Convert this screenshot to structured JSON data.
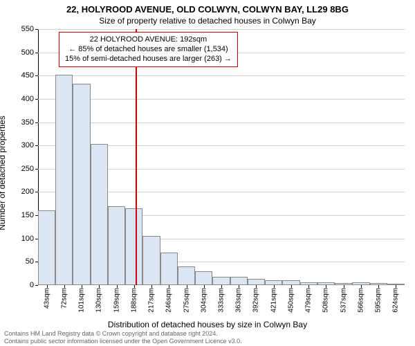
{
  "title": "22, HOLYROOD AVENUE, OLD COLWYN, COLWYN BAY, LL29 8BG",
  "subtitle": "Size of property relative to detached houses in Colwyn Bay",
  "axes": {
    "ylabel": "Number of detached properties",
    "xlabel": "Distribution of detached houses by size in Colwyn Bay",
    "ylim": [
      0,
      550
    ],
    "ytick_step": 50,
    "grid_color": "#d0d0d0",
    "axis_color": "#000000",
    "background_color": "#ffffff",
    "label_fontsize": 12,
    "tick_fontsize": 11
  },
  "chart": {
    "type": "histogram",
    "bar_fill": "#dce6f2",
    "bar_border": "#888888",
    "categories": [
      "43sqm",
      "72sqm",
      "101sqm",
      "130sqm",
      "159sqm",
      "188sqm",
      "217sqm",
      "246sqm",
      "275sqm",
      "304sqm",
      "333sqm",
      "363sqm",
      "392sqm",
      "421sqm",
      "450sqm",
      "479sqm",
      "508sqm",
      "537sqm",
      "566sqm",
      "595sqm",
      "624sqm"
    ],
    "values": [
      160,
      452,
      432,
      303,
      170,
      165,
      105,
      70,
      40,
      30,
      18,
      18,
      14,
      10,
      10,
      6,
      6,
      4,
      6,
      4,
      2
    ],
    "bar_gap_ratio": 0.0
  },
  "marker": {
    "value_sqm": 192,
    "line_color": "#cc0000",
    "box_border": "#cc0000",
    "box_background": "#ffffff",
    "lines": [
      "22 HOLYROOD AVENUE: 192sqm",
      "← 85% of detached houses are smaller (1,534)",
      "15% of semi-detached houses are larger (263) →"
    ],
    "box_fontsize": 11
  },
  "footer": [
    "Contains HM Land Registry data © Crown copyright and database right 2024.",
    "Contains public sector information licensed under the Open Government Licence v3.0."
  ]
}
